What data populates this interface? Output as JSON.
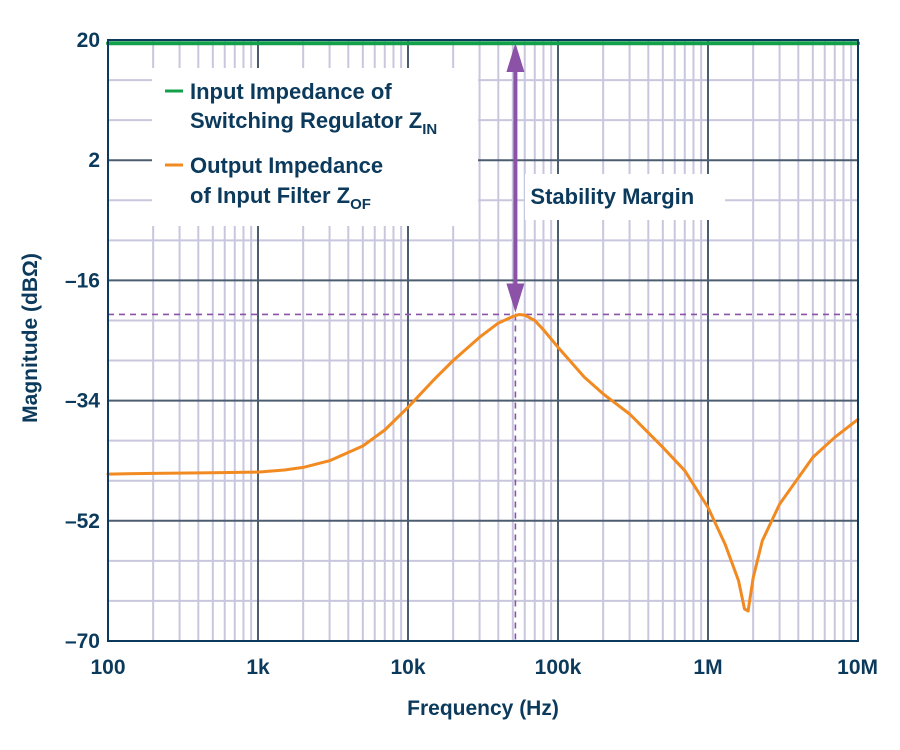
{
  "chart_data": {
    "type": "line",
    "xscale": "log",
    "xlim": [
      100,
      10000000
    ],
    "ylim": [
      -70,
      20
    ],
    "xlabel": "Frequency (Hz)",
    "ylabel": "Magnitude (dBΩ)",
    "x_ticks": [
      {
        "value": 100,
        "label": "100"
      },
      {
        "value": 1000,
        "label": "1k"
      },
      {
        "value": 10000,
        "label": "10k"
      },
      {
        "value": 100000,
        "label": "100k"
      },
      {
        "value": 1000000,
        "label": "1M"
      },
      {
        "value": 10000000,
        "label": "10M"
      }
    ],
    "y_ticks": [
      {
        "value": 20,
        "label": "20"
      },
      {
        "value": 2,
        "label": "2"
      },
      {
        "value": -16,
        "label": "–16"
      },
      {
        "value": -34,
        "label": "–34"
      },
      {
        "value": -52,
        "label": "–52"
      },
      {
        "value": -70,
        "label": "–70"
      }
    ],
    "grid": true,
    "legend_position": "top-left",
    "series": [
      {
        "name_line1": "Input Impedance of",
        "name_line2": "Switching Regulator Z",
        "name_sub": "IN",
        "color": "#13a04a",
        "points": [
          [
            100,
            19.5
          ],
          [
            10000000,
            19.5
          ]
        ]
      },
      {
        "name_line1": "Output Impedance",
        "name_line2": "of Input Filter Z",
        "name_sub": "OF",
        "color": "#f28a22",
        "points": [
          [
            100,
            -45.0
          ],
          [
            200,
            -44.9
          ],
          [
            500,
            -44.8
          ],
          [
            1000,
            -44.7
          ],
          [
            1500,
            -44.4
          ],
          [
            2000,
            -44.0
          ],
          [
            3000,
            -43.0
          ],
          [
            5000,
            -40.8
          ],
          [
            7000,
            -38.4
          ],
          [
            10000,
            -35.0
          ],
          [
            15000,
            -30.8
          ],
          [
            20000,
            -28.0
          ],
          [
            30000,
            -24.5
          ],
          [
            40000,
            -22.4
          ],
          [
            50000,
            -21.4
          ],
          [
            55000,
            -21.1
          ],
          [
            60000,
            -21.2
          ],
          [
            70000,
            -22.0
          ],
          [
            80000,
            -23.4
          ],
          [
            100000,
            -26.0
          ],
          [
            150000,
            -30.5
          ],
          [
            200000,
            -33.0
          ],
          [
            300000,
            -36.0
          ],
          [
            500000,
            -41.0
          ],
          [
            700000,
            -44.5
          ],
          [
            1000000,
            -50.0
          ],
          [
            1300000,
            -55.5
          ],
          [
            1600000,
            -61.0
          ],
          [
            1750000,
            -65.2
          ],
          [
            1850000,
            -65.5
          ],
          [
            2000000,
            -60.5
          ],
          [
            2300000,
            -55.0
          ],
          [
            3000000,
            -49.5
          ],
          [
            5000000,
            -42.5
          ],
          [
            7000000,
            -39.5
          ],
          [
            10000000,
            -36.8
          ]
        ]
      }
    ],
    "annotations": [
      {
        "text": "Stability Margin",
        "x": 52000,
        "y_from": 20,
        "y_to": -21.1,
        "color": "#8c52a8"
      }
    ]
  }
}
